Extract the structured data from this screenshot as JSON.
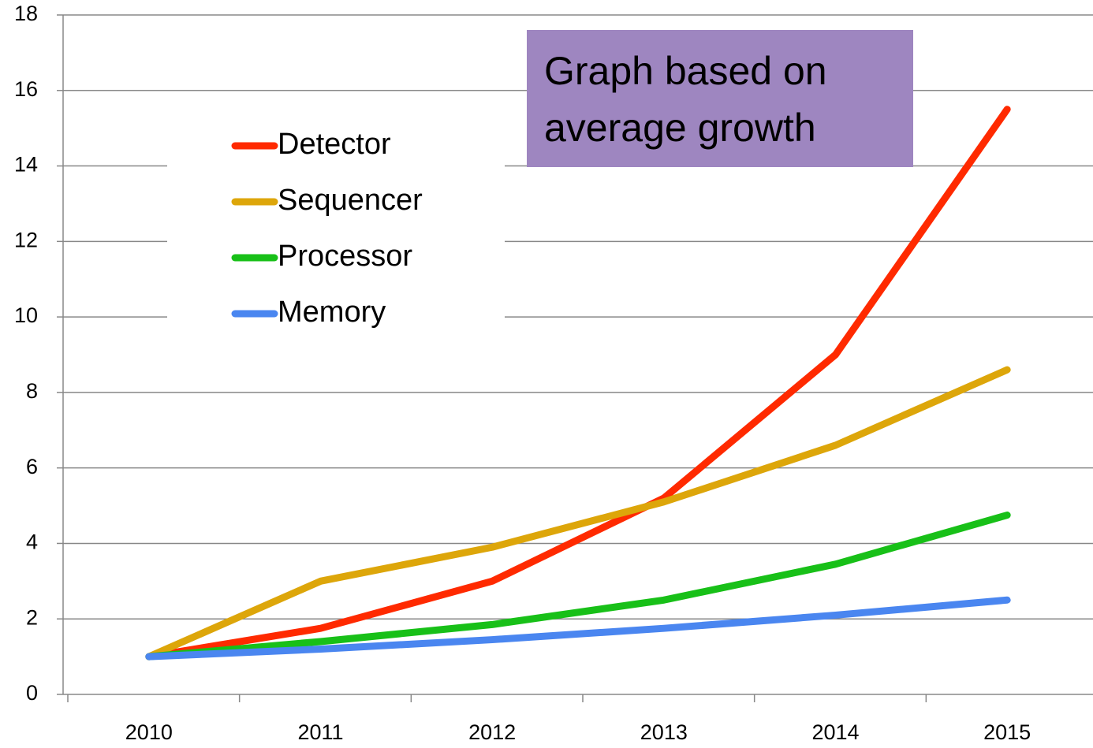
{
  "chart_data": {
    "type": "line",
    "categories": [
      "2010",
      "2011",
      "2012",
      "2013",
      "2014",
      "2015"
    ],
    "series": [
      {
        "name": "Detector",
        "color": "#ff2a00",
        "values": [
          1,
          1.75,
          3,
          5.2,
          9,
          15.5
        ]
      },
      {
        "name": "Sequencer",
        "color": "#dda60a",
        "values": [
          1,
          3,
          3.9,
          5.1,
          6.6,
          8.6
        ]
      },
      {
        "name": "Processor",
        "color": "#18c018",
        "values": [
          1,
          1.4,
          1.85,
          2.5,
          3.45,
          4.75
        ]
      },
      {
        "name": "Memory",
        "color": "#4a86f0",
        "values": [
          1,
          1.2,
          1.45,
          1.75,
          2.1,
          2.5
        ]
      }
    ],
    "ylim": [
      0,
      18
    ],
    "yticks": [
      0,
      2,
      4,
      6,
      8,
      10,
      12,
      14,
      16,
      18
    ],
    "grid": true,
    "annotation": [
      "Graph based on",
      "average growth"
    ]
  }
}
